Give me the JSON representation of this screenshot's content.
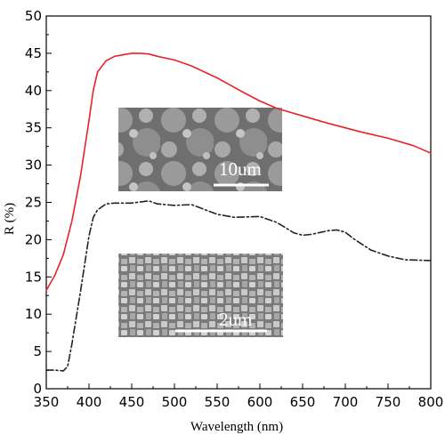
{
  "chart_data": {
    "type": "line",
    "title": "",
    "xlabel": "Wavelength (nm)",
    "ylabel": "R (%)",
    "xlim": [
      350,
      800
    ],
    "ylim": [
      0,
      50
    ],
    "xticks": [
      350,
      400,
      450,
      500,
      550,
      600,
      650,
      700,
      750,
      800
    ],
    "yticks": [
      0,
      5,
      10,
      15,
      20,
      25,
      30,
      35,
      40,
      45,
      50
    ],
    "grid": false,
    "legend": "none",
    "series": [
      {
        "color": "#e8222a",
        "style": "solid",
        "x": [
          350,
          360,
          370,
          380,
          390,
          400,
          405,
          410,
          420,
          430,
          440,
          450,
          460,
          470,
          480,
          500,
          520,
          550,
          580,
          600,
          620,
          650,
          680,
          700,
          720,
          750,
          780,
          800
        ],
        "y": [
          13.2,
          15.2,
          18.0,
          22.5,
          28.5,
          36.0,
          40.0,
          42.5,
          44.0,
          44.6,
          44.8,
          45.0,
          45.0,
          44.9,
          44.6,
          44.1,
          43.3,
          41.7,
          39.8,
          38.6,
          37.6,
          36.6,
          35.6,
          35.0,
          34.4,
          33.6,
          32.6,
          31.6
        ]
      },
      {
        "color": "#222222",
        "style": "dash-dot",
        "x": [
          350,
          360,
          370,
          375,
          380,
          390,
          400,
          405,
          410,
          420,
          430,
          450,
          470,
          480,
          500,
          520,
          550,
          570,
          600,
          620,
          640,
          650,
          660,
          680,
          690,
          700,
          710,
          730,
          750,
          770,
          800
        ],
        "y": [
          2.5,
          2.5,
          2.4,
          3.0,
          6.0,
          13.0,
          20.5,
          23.0,
          24.0,
          24.8,
          24.9,
          24.9,
          25.2,
          24.8,
          24.6,
          24.7,
          23.4,
          23.0,
          23.1,
          22.3,
          20.9,
          20.6,
          20.7,
          21.2,
          21.3,
          21.0,
          20.1,
          18.6,
          17.8,
          17.3,
          17.2
        ]
      }
    ],
    "insets": [
      {
        "scale_bar_label": "10um"
      },
      {
        "scale_bar_label": "2um"
      }
    ]
  }
}
